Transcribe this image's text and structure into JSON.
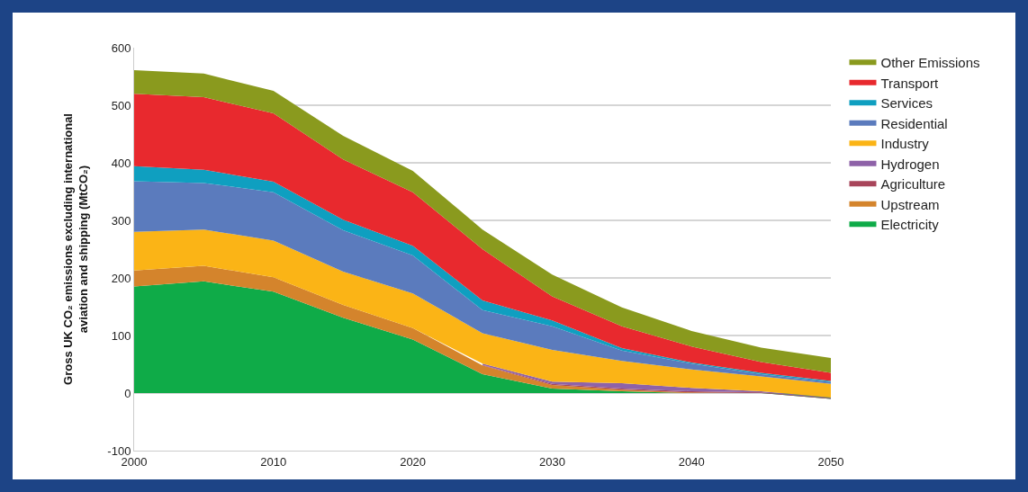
{
  "chart_data": {
    "type": "area",
    "stacked": true,
    "ylabel": "Gross UK CO₂ emissions excluding international aviation and shipping (MtCO₂)",
    "x": [
      2000,
      2005,
      2010,
      2015,
      2020,
      2025,
      2030,
      2035,
      2040,
      2045,
      2050
    ],
    "xlim": [
      2000,
      2050
    ],
    "xticks": [
      2000,
      2010,
      2020,
      2030,
      2040,
      2050
    ],
    "ylim": [
      -100,
      600
    ],
    "yticks": [
      -100,
      0,
      100,
      200,
      300,
      400,
      500,
      600
    ],
    "grid": "y",
    "legend": "top right",
    "marker": "none",
    "series": [
      {
        "name": "Electricity",
        "color": "#0fab48",
        "values": [
          185,
          194,
          176,
          131,
          93,
          33,
          8,
          3,
          0,
          0,
          -10
        ]
      },
      {
        "name": "Upstream",
        "color": "#d4842c",
        "values": [
          28,
          27,
          25,
          22,
          20,
          15,
          6,
          3,
          1,
          0,
          0
        ]
      },
      {
        "name": "Agriculture",
        "color": "#a8455a",
        "values": [
          null,
          null,
          null,
          null,
          null,
          1,
          2,
          2,
          2,
          1,
          1
        ]
      },
      {
        "name": "Hydrogen",
        "color": "#8e62a8",
        "values": [
          null,
          null,
          null,
          null,
          null,
          2,
          4,
          9,
          6,
          2,
          1
        ]
      },
      {
        "name": "Industry",
        "color": "#fbb416",
        "values": [
          67,
          63,
          64,
          58,
          60,
          53,
          55,
          39,
          32,
          26,
          24
        ]
      },
      {
        "name": "Residential",
        "color": "#5b7bbd",
        "values": [
          88,
          81,
          84,
          72,
          66,
          40,
          41,
          18,
          10,
          4,
          3
        ]
      },
      {
        "name": "Services",
        "color": "#0f9fc0",
        "values": [
          26,
          23,
          18,
          18,
          17,
          17,
          10,
          4,
          2,
          2,
          2
        ]
      },
      {
        "name": "Transport",
        "color": "#e8292e",
        "values": [
          126,
          126,
          119,
          105,
          93,
          89,
          42,
          38,
          28,
          19,
          14
        ]
      },
      {
        "name": "Other Emissions",
        "color": "#8a9a1e",
        "values": [
          41,
          41,
          39,
          41,
          37,
          34,
          38,
          33,
          27,
          25,
          26
        ]
      }
    ]
  }
}
